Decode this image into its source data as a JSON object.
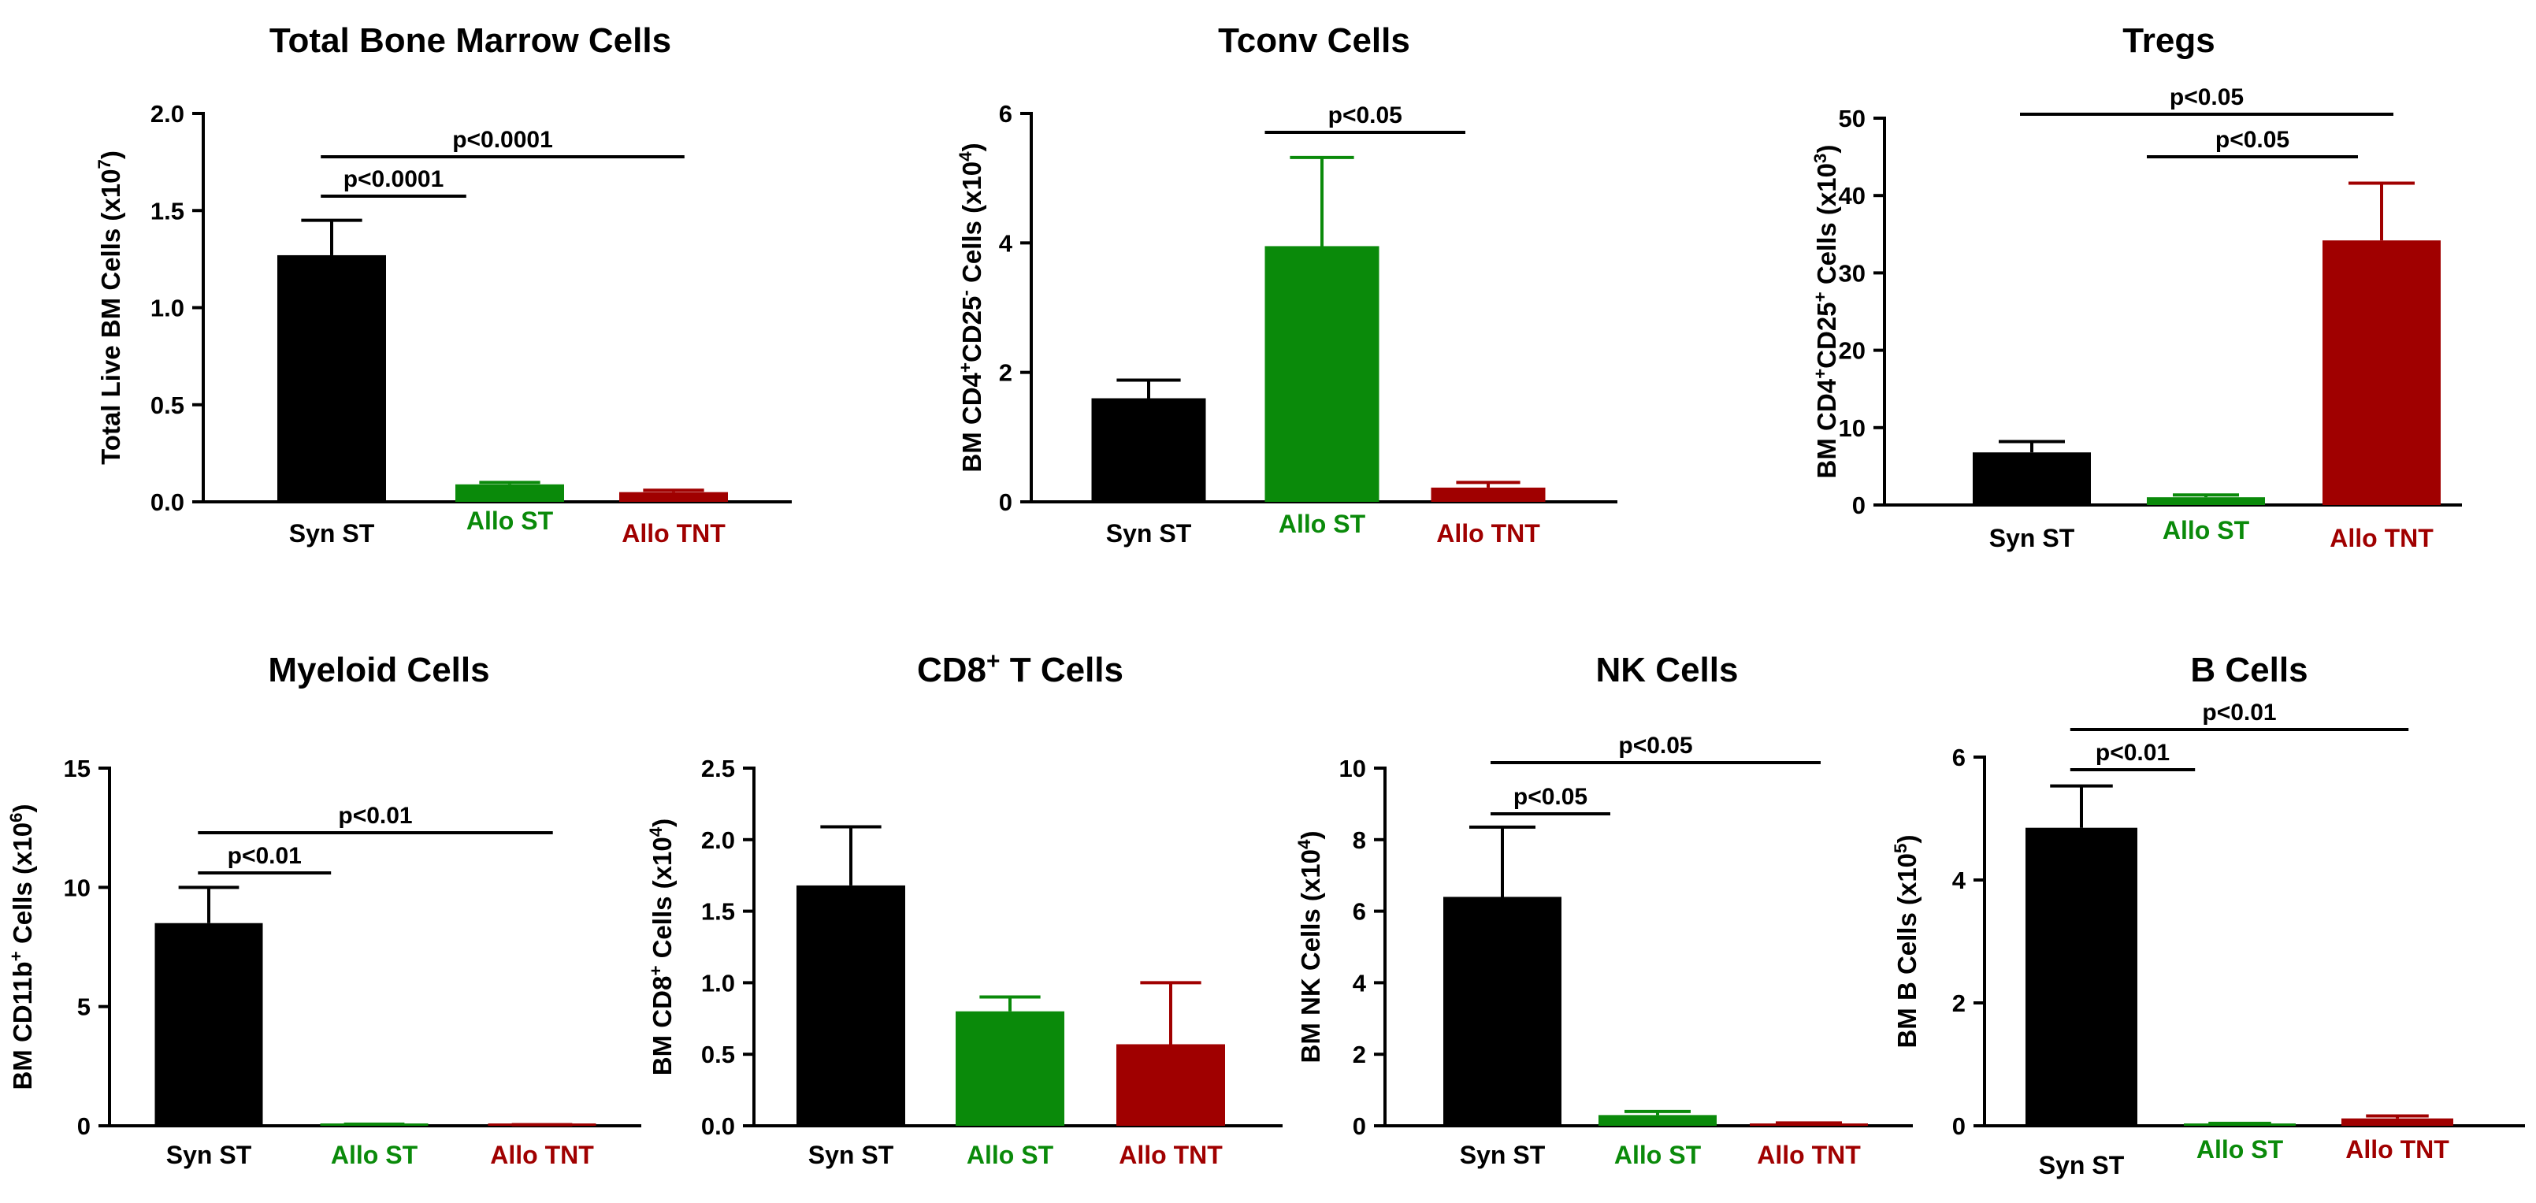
{
  "colors": {
    "Syn ST": "#000000",
    "Allo ST": "#0a8a0a",
    "Allo TNT": "#a00000"
  },
  "chart_data": [
    {
      "type": "bar",
      "title": "Total Bone Marrow Cells",
      "ylabel_parts": [
        [
          "Total Live BM Cells (x10",
          false
        ],
        [
          "7",
          true
        ],
        [
          ")",
          false
        ]
      ],
      "categories": [
        "Syn ST",
        "Allo ST",
        "Allo TNT"
      ],
      "values": [
        1.27,
        0.09,
        0.05
      ],
      "errors": [
        0.18,
        0.01,
        0.01
      ],
      "ylim": [
        0,
        2.0
      ],
      "yticks": [
        0,
        0.5,
        1.0,
        1.5,
        2.0
      ],
      "tick_labels": [
        "0.0",
        "0.5",
        "1.0",
        "1.5",
        "2.0"
      ],
      "comparisons": [
        {
          "from": 0,
          "to": 1,
          "label": "p<0.0001",
          "level": 1
        },
        {
          "from": 0,
          "to": 2,
          "label": "p<0.0001",
          "level": 2
        }
      ]
    },
    {
      "type": "bar",
      "title": "Tconv Cells",
      "ylabel_parts": [
        [
          "BM CD4",
          false
        ],
        [
          "+",
          true
        ],
        [
          "CD25",
          false
        ],
        [
          "-",
          true
        ],
        [
          " Cells (x10",
          false
        ],
        [
          "4",
          true
        ],
        [
          ")",
          false
        ]
      ],
      "categories": [
        "Syn ST",
        "Allo ST",
        "Allo TNT"
      ],
      "values": [
        1.6,
        3.95,
        0.22
      ],
      "errors": [
        0.28,
        1.37,
        0.08
      ],
      "ylim": [
        0,
        6
      ],
      "yticks": [
        0,
        2,
        4,
        6
      ],
      "tick_labels": [
        "0",
        "2",
        "4",
        "6"
      ],
      "comparisons": [
        {
          "from": 1,
          "to": 2,
          "label": "p<0.05",
          "level": 1
        }
      ]
    },
    {
      "type": "bar",
      "title": "Tregs",
      "ylabel_parts": [
        [
          "BM CD4",
          false
        ],
        [
          "+",
          true
        ],
        [
          "CD25",
          false
        ],
        [
          "+",
          true
        ],
        [
          " Cells (x10",
          false
        ],
        [
          "3",
          true
        ],
        [
          ")",
          false
        ]
      ],
      "categories": [
        "Syn ST",
        "Allo ST",
        "Allo TNT"
      ],
      "values": [
        6.8,
        1.0,
        34.2
      ],
      "errors": [
        1.4,
        0.3,
        7.4
      ],
      "ylim": [
        0,
        50
      ],
      "yticks": [
        0,
        10,
        20,
        30,
        40,
        50
      ],
      "tick_labels": [
        "0",
        "10",
        "20",
        "30",
        "40",
        "50"
      ],
      "comparisons": [
        {
          "from": 1,
          "to": 2,
          "label": "p<0.05",
          "level": 1
        },
        {
          "from": 0,
          "to": 2,
          "label": "p<0.05",
          "level": 2
        }
      ]
    },
    {
      "type": "bar",
      "title": "Myeloid Cells",
      "ylabel_parts": [
        [
          "BM CD11b",
          false
        ],
        [
          "+",
          true
        ],
        [
          " Cells (x10",
          false
        ],
        [
          "6",
          true
        ],
        [
          ")",
          false
        ]
      ],
      "categories": [
        "Syn ST",
        "Allo ST",
        "Allo TNT"
      ],
      "values": [
        8.5,
        0.05,
        0.03
      ],
      "errors": [
        1.5,
        0.02,
        0.02
      ],
      "ylim": [
        0,
        15
      ],
      "yticks": [
        0,
        5,
        10,
        15
      ],
      "tick_labels": [
        "0",
        "5",
        "10",
        "15"
      ],
      "comparisons": [
        {
          "from": 0,
          "to": 1,
          "label": "p<0.01",
          "level": 1
        },
        {
          "from": 0,
          "to": 2,
          "label": "p<0.01",
          "level": 2
        }
      ]
    },
    {
      "type": "bar",
      "title_parts": [
        [
          "CD8",
          false
        ],
        [
          "+",
          true
        ],
        [
          " T Cells",
          false
        ]
      ],
      "ylabel_parts": [
        [
          "BM CD8",
          false
        ],
        [
          "+",
          true
        ],
        [
          " Cells (x10",
          false
        ],
        [
          "4",
          true
        ],
        [
          ")",
          false
        ]
      ],
      "categories": [
        "Syn ST",
        "Allo ST",
        "Allo TNT"
      ],
      "values": [
        1.68,
        0.8,
        0.57
      ],
      "errors": [
        0.41,
        0.1,
        0.43
      ],
      "ylim": [
        0,
        2.5
      ],
      "yticks": [
        0,
        0.5,
        1.0,
        1.5,
        2.0,
        2.5
      ],
      "tick_labels": [
        "0.0",
        "0.5",
        "1.0",
        "1.5",
        "2.0",
        "2.5"
      ],
      "comparisons": []
    },
    {
      "type": "bar",
      "title": "NK Cells",
      "ylabel_parts": [
        [
          "BM NK Cells (x10",
          false
        ],
        [
          "4",
          true
        ],
        [
          ")",
          false
        ]
      ],
      "categories": [
        "Syn ST",
        "Allo ST",
        "Allo TNT"
      ],
      "values": [
        6.4,
        0.3,
        0.05
      ],
      "errors": [
        1.95,
        0.1,
        0.03
      ],
      "ylim": [
        0,
        10
      ],
      "yticks": [
        0,
        2,
        4,
        6,
        8,
        10
      ],
      "tick_labels": [
        "0",
        "2",
        "4",
        "6",
        "8",
        "10"
      ],
      "comparisons": [
        {
          "from": 0,
          "to": 1,
          "label": "p<0.05",
          "level": 1
        },
        {
          "from": 0,
          "to": 2,
          "label": "p<0.05",
          "level": 2
        }
      ]
    },
    {
      "type": "bar",
      "title": "B Cells",
      "ylabel_parts": [
        [
          "BM B Cells (x10",
          false
        ],
        [
          "5",
          true
        ],
        [
          ")",
          false
        ]
      ],
      "categories": [
        "Syn ST",
        "Allo ST",
        "Allo TNT"
      ],
      "values": [
        4.85,
        0.03,
        0.12
      ],
      "errors": [
        0.68,
        0.01,
        0.04
      ],
      "ylim": [
        0,
        6
      ],
      "yticks": [
        0,
        2,
        4,
        6
      ],
      "tick_labels": [
        "0",
        "2",
        "4",
        "6"
      ],
      "comparisons": [
        {
          "from": 0,
          "to": 1,
          "label": "p<0.01",
          "level": 1
        },
        {
          "from": 0,
          "to": 2,
          "label": "p<0.01",
          "level": 2
        }
      ]
    }
  ]
}
